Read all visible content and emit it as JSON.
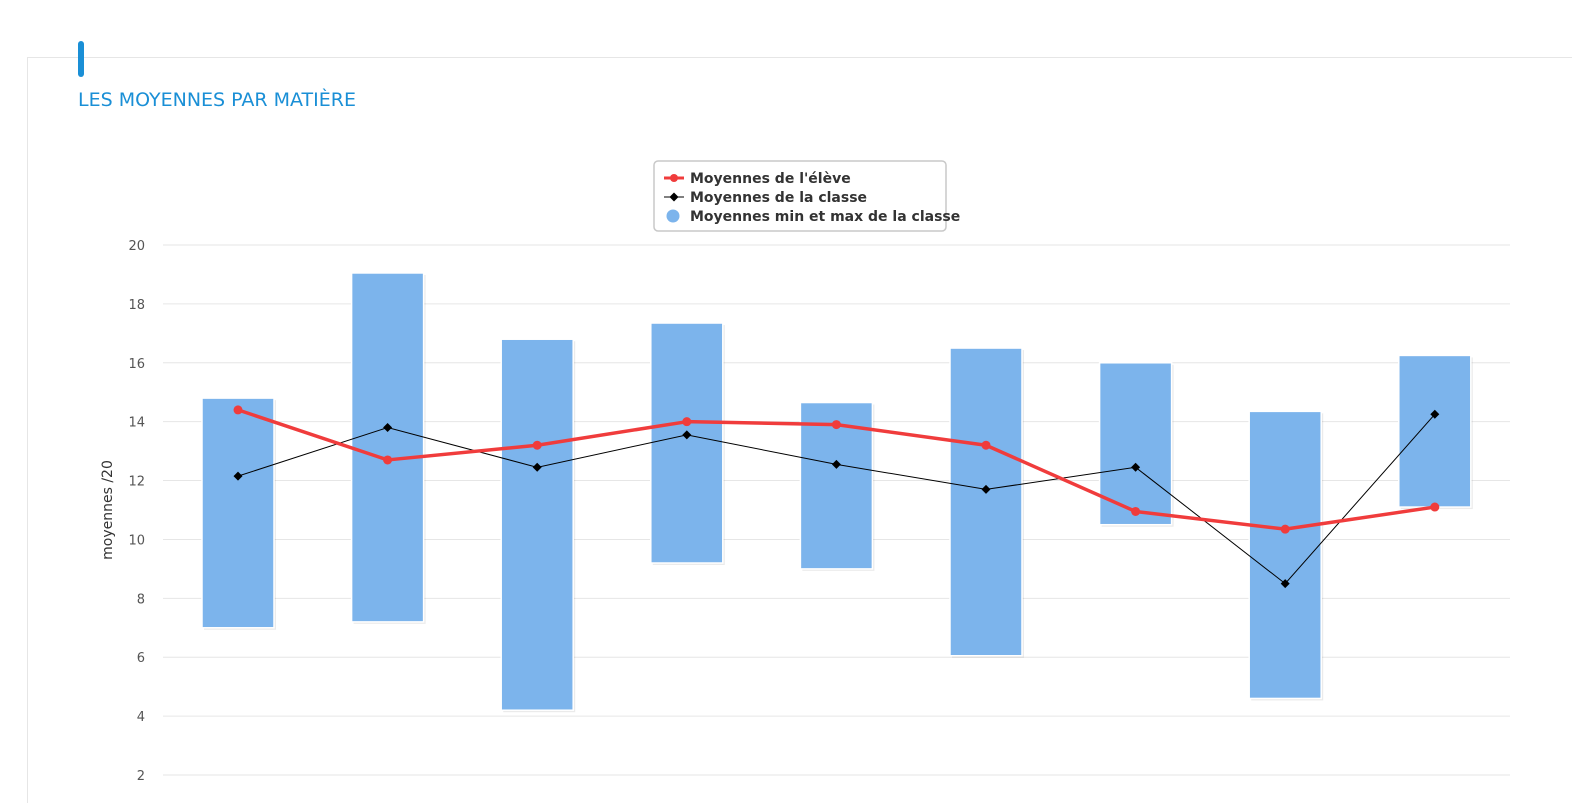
{
  "section": {
    "title": "LES MOYENNES PAR MATIÈRE",
    "accent_color": "#1a8fd6"
  },
  "chart_data": {
    "type": "bar",
    "ylabel": "moyennes /20",
    "ylim": [
      2,
      20
    ],
    "yticks": [
      2,
      4,
      6,
      8,
      10,
      12,
      14,
      16,
      18,
      20
    ],
    "grid": true,
    "legend_position": "top-center",
    "series": [
      {
        "name": "Moyennes de l'élève",
        "kind": "line",
        "color": "#f03c3c",
        "values": [
          14.4,
          12.7,
          13.2,
          14.0,
          13.9,
          13.2,
          10.95,
          10.35,
          11.1
        ]
      },
      {
        "name": "Moyennes de la classe",
        "kind": "line",
        "color": "#000000",
        "values": [
          12.15,
          13.8,
          12.45,
          13.55,
          12.55,
          11.7,
          12.45,
          8.5,
          14.25
        ]
      },
      {
        "name": "Moyennes min et max de la classe",
        "kind": "range-bar",
        "color": "#7cb4ec",
        "ranges": [
          [
            7.0,
            14.8
          ],
          [
            7.2,
            19.05
          ],
          [
            4.2,
            16.8
          ],
          [
            9.2,
            17.35
          ],
          [
            9.0,
            14.65
          ],
          [
            6.05,
            16.5
          ],
          [
            10.5,
            16.0
          ],
          [
            4.6,
            14.35
          ],
          [
            11.1,
            16.25
          ]
        ]
      }
    ]
  }
}
